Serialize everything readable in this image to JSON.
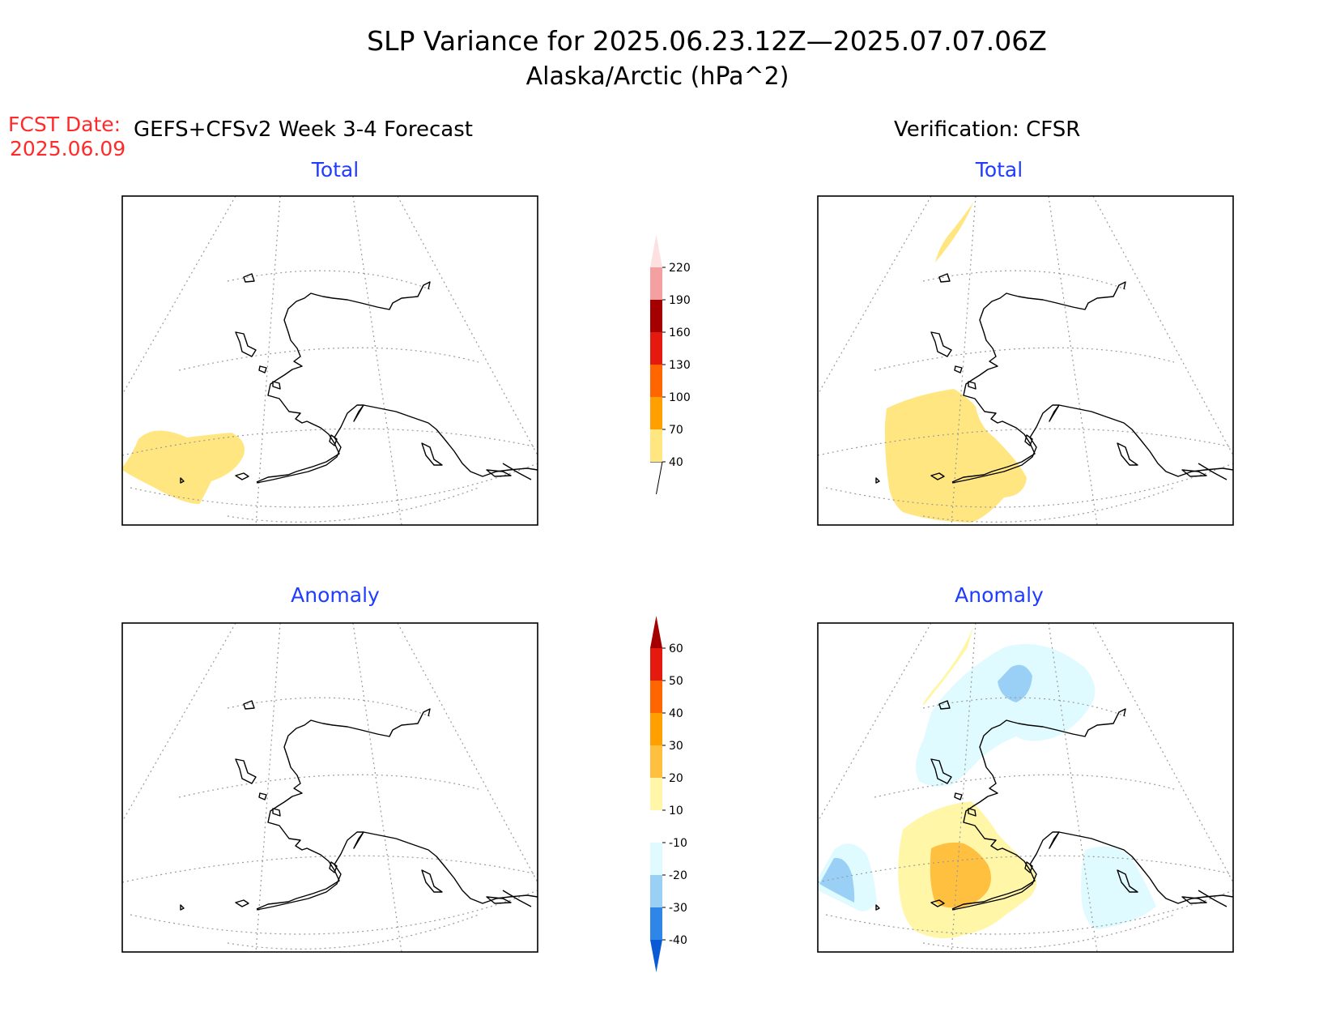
{
  "title": {
    "line1": "SLP Variance for 2025.06.23.12Z—2025.07.07.06Z",
    "line2": "Alaska/Arctic (hPa^2)"
  },
  "forecast": {
    "date_label": "FCST Date:",
    "date_value": "2025.06.09",
    "heading": "GEFS+CFSv2 Week 3-4 Forecast",
    "total_label": "Total",
    "anomaly_label": "Anomaly"
  },
  "verification": {
    "heading": "Verification: CFSR",
    "total_label": "Total",
    "anomaly_label": "Anomaly"
  },
  "colors": {
    "title_text": "#000000",
    "fcst_date": "#ff2a2a",
    "panel_label": "#1f3cff",
    "coastline": "#000000",
    "graticule": "#9a9a9a"
  },
  "total_colorbar": {
    "levels": [
      "40",
      "70",
      "100",
      "130",
      "160",
      "190",
      "220"
    ],
    "colors": [
      "#ffe680",
      "#ff9f00",
      "#ff6600",
      "#e31a0d",
      "#a50000",
      "#f4a0a0",
      "#fde0e0"
    ]
  },
  "anomaly_colorbar": {
    "levels": [
      "-40",
      "-30",
      "-20",
      "-10",
      "10",
      "20",
      "30",
      "40",
      "50",
      "60"
    ],
    "colors": [
      "#0a5ad6",
      "#2e86e8",
      "#9ad0f5",
      "#e0fbff",
      "#ffffff",
      "#fff6a8",
      "#ffc040",
      "#ff9f00",
      "#ff6600",
      "#e31a0d",
      "#a50000"
    ]
  }
}
